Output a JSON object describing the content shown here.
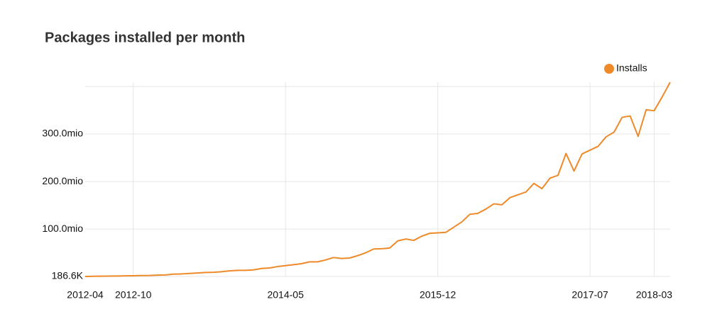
{
  "chart_data": {
    "type": "line",
    "title": "Packages installed per month",
    "x": [
      "2012-04",
      "2012-05",
      "2012-06",
      "2012-07",
      "2012-08",
      "2012-09",
      "2012-10",
      "2012-11",
      "2012-12",
      "2013-01",
      "2013-02",
      "2013-03",
      "2013-04",
      "2013-05",
      "2013-06",
      "2013-07",
      "2013-08",
      "2013-09",
      "2013-10",
      "2013-11",
      "2013-12",
      "2014-01",
      "2014-02",
      "2014-03",
      "2014-04",
      "2014-05",
      "2014-06",
      "2014-07",
      "2014-08",
      "2014-09",
      "2014-10",
      "2014-11",
      "2014-12",
      "2015-01",
      "2015-02",
      "2015-03",
      "2015-04",
      "2015-05",
      "2015-06",
      "2015-07",
      "2015-08",
      "2015-09",
      "2015-10",
      "2015-11",
      "2015-12",
      "2016-01",
      "2016-02",
      "2016-03",
      "2016-04",
      "2016-05",
      "2016-06",
      "2016-07",
      "2016-08",
      "2016-09",
      "2016-10",
      "2016-11",
      "2016-12",
      "2017-01",
      "2017-02",
      "2017-03",
      "2017-04",
      "2017-05",
      "2017-06",
      "2017-07",
      "2017-08",
      "2017-09",
      "2017-10",
      "2017-11",
      "2017-12",
      "2018-01",
      "2018-02",
      "2018-03",
      "2018-04",
      "2018-05"
    ],
    "series": [
      {
        "name": "Installs",
        "color": "#ee8a2a",
        "values": [
          186600,
          500000,
          800000,
          1000000,
          1200000,
          1400000,
          1600000,
          2000000,
          2200000,
          3000000,
          3300000,
          5000000,
          5500000,
          6500000,
          7500000,
          8500000,
          9000000,
          10000000,
          12000000,
          13000000,
          13000000,
          14000000,
          17000000,
          18000000,
          21000000,
          23000000,
          25000000,
          27000000,
          31000000,
          31000000,
          35000000,
          40000000,
          38000000,
          39000000,
          44000000,
          50000000,
          58000000,
          58500000,
          60000000,
          75000000,
          79000000,
          76000000,
          85000000,
          91000000,
          92000000,
          93000000,
          104000000,
          115000000,
          131000000,
          133000000,
          142000000,
          153000000,
          151000000,
          166000000,
          172000000,
          178000000,
          196000000,
          185000000,
          207000000,
          213000000,
          259000000,
          222000000,
          258000000,
          266000000,
          274000000,
          294000000,
          304000000,
          335000000,
          338000000,
          295000000,
          351000000,
          349000000,
          378000000,
          409000000
        ]
      }
    ],
    "xticks": [
      "2012-04",
      "2012-10",
      "2014-05",
      "2015-12",
      "2017-07",
      "2018-03"
    ],
    "ylim": [
      186600,
      400000000
    ],
    "yticks": [
      {
        "value": 186600,
        "label": "186.6K"
      },
      {
        "value": 100000000,
        "label": "100.0mio"
      },
      {
        "value": 200000000,
        "label": "200.0mio"
      },
      {
        "value": 300000000,
        "label": "300.0mio"
      }
    ],
    "grid": true,
    "legend": "top-right"
  }
}
